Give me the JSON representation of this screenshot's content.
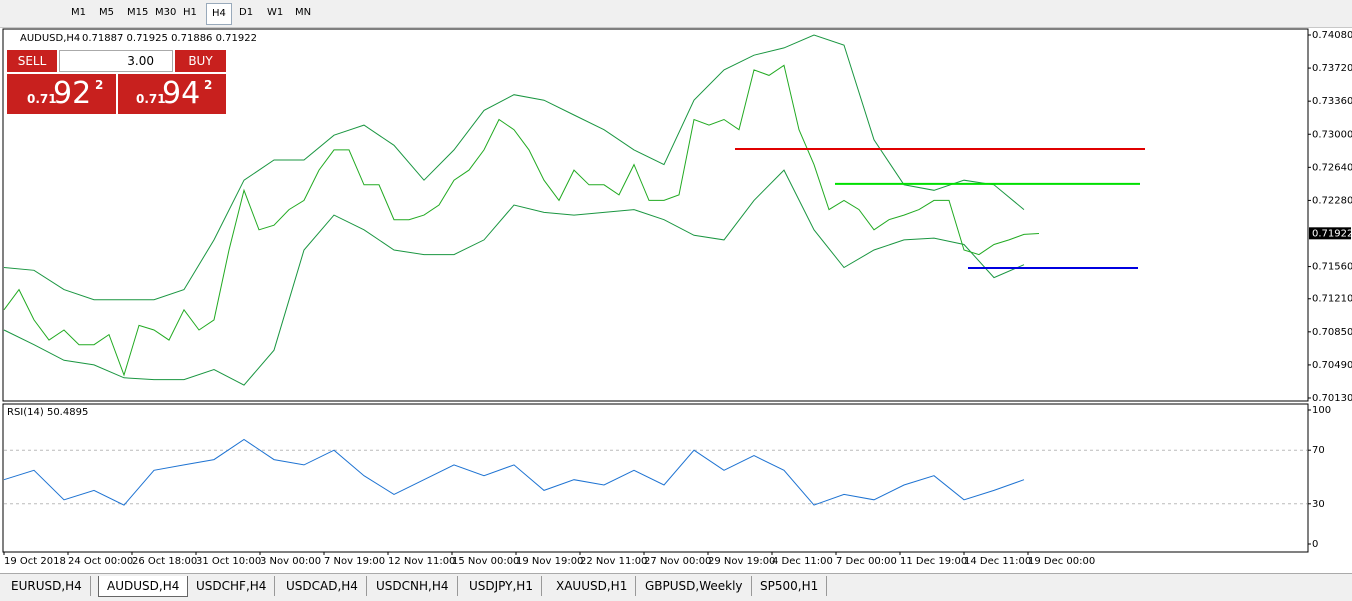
{
  "toolbar": {
    "timeframes": [
      "M1",
      "M5",
      "M15",
      "M30",
      "H1",
      "H4",
      "D1",
      "W1",
      "MN"
    ],
    "active": "H4"
  },
  "header": {
    "symbol": "AUDUSD,H4",
    "quote": "0.71887 0.71925 0.71886 0.71922"
  },
  "trade_panel": {
    "sell": "SELL",
    "buy": "BUY",
    "lots": "3.00",
    "bid_prefix": "0.71",
    "bid_big": "92",
    "bid_small": "2",
    "ask_prefix": "0.71",
    "ask_big": "94",
    "ask_small": "2"
  },
  "chart": {
    "type": "line",
    "ylim": [
      0.7013,
      0.7408
    ],
    "yticks": [
      {
        "value": 0.7408,
        "label": "0.74080"
      },
      {
        "value": 0.7372,
        "label": "0.73720"
      },
      {
        "value": 0.7336,
        "label": "0.73360"
      },
      {
        "value": 0.73,
        "label": "0.73000"
      },
      {
        "value": 0.7264,
        "label": "0.72640"
      },
      {
        "value": 0.7228,
        "label": "0.72280"
      },
      {
        "value": 0.7156,
        "label": "0.71560"
      },
      {
        "value": 0.7121,
        "label": "0.71210"
      },
      {
        "value": 0.7085,
        "label": "0.70850"
      },
      {
        "value": 0.7049,
        "label": "0.70490"
      },
      {
        "value": 0.7013,
        "label": "0.70130"
      }
    ],
    "current_price": 0.71922,
    "dates": [
      "19 Oct 2018",
      "24 Oct 00:00",
      "26 Oct 18:00",
      "31 Oct 10:00",
      "3 Nov 00:00",
      "7 Nov 19:00",
      "12 Nov 11:00",
      "15 Nov 00:00",
      "19 Nov 19:00",
      "22 Nov 11:00",
      "27 Nov 00:00",
      "29 Nov 19:00",
      "4 Dec 11:00",
      "7 Dec 00:00",
      "11 Dec 19:00",
      "14 Dec 11:00",
      "19 Dec 00:00"
    ],
    "close": [
      0.7109,
      0.7131,
      0.7098,
      0.7076,
      0.7087,
      0.7071,
      0.7071,
      0.7082,
      0.7038,
      0.7092,
      0.7087,
      0.7076,
      0.7109,
      0.7087,
      0.7098,
      0.7174,
      0.7239,
      0.7196,
      0.7201,
      0.7218,
      0.7228,
      0.7261,
      0.7283,
      0.7283,
      0.7245,
      0.7245,
      0.7207,
      0.7207,
      0.7212,
      0.7223,
      0.725,
      0.7261,
      0.7283,
      0.7316,
      0.7305,
      0.7283,
      0.725,
      0.7228,
      0.7261,
      0.7245,
      0.7245,
      0.7234,
      0.7267,
      0.7228,
      0.7228,
      0.7234,
      0.7316,
      0.731,
      0.7316,
      0.7305,
      0.737,
      0.7364,
      0.7375,
      0.7305,
      0.7267,
      0.7218,
      0.7228,
      0.7218,
      0.7196,
      0.7207,
      0.7212,
      0.7218,
      0.7228,
      0.7228,
      0.7174,
      0.7169,
      0.718,
      0.7185,
      0.7191,
      0.7192
    ],
    "band_upper": [
      0.7155,
      0.7152,
      0.7131,
      0.712,
      0.712,
      0.712,
      0.7131,
      0.7185,
      0.725,
      0.7272,
      0.7272,
      0.7299,
      0.731,
      0.7288,
      0.725,
      0.7283,
      0.7326,
      0.7343,
      0.7337,
      0.7321,
      0.7305,
      0.7283,
      0.7267,
      0.7337,
      0.737,
      0.7386,
      0.7394,
      0.7408,
      0.7397,
      0.7294,
      0.7245,
      0.7239,
      0.725,
      0.7245,
      0.7218
    ],
    "band_lower": [
      0.7087,
      0.7071,
      0.7054,
      0.7049,
      0.7035,
      0.7033,
      0.7033,
      0.7044,
      0.7027,
      0.7065,
      0.7174,
      0.7212,
      0.7196,
      0.7174,
      0.7169,
      0.7169,
      0.7185,
      0.7223,
      0.7215,
      0.7212,
      0.7215,
      0.7218,
      0.7207,
      0.719,
      0.7185,
      0.7228,
      0.7261,
      0.7196,
      0.7155,
      0.7174,
      0.7185,
      0.7187,
      0.718,
      0.7144,
      0.7158
    ],
    "levels": [
      {
        "value": 0.7284,
        "color": "#e00000"
      },
      {
        "value": 0.7246,
        "color": "#00e000"
      },
      {
        "value": 0.71545,
        "color": "#0000e0"
      }
    ],
    "rsi": {
      "label": "RSI(14) 50.4895",
      "ylim": [
        0,
        100
      ],
      "yticks": [
        100,
        70,
        30,
        0
      ],
      "values": [
        48,
        55,
        33,
        40,
        29,
        55,
        59,
        63,
        78,
        63,
        59,
        70,
        51,
        37,
        48,
        59,
        51,
        59,
        40,
        48,
        44,
        55,
        44,
        70,
        55,
        66,
        55,
        29,
        37,
        33,
        44,
        51,
        33,
        40,
        48
      ]
    }
  },
  "tabs": {
    "items": [
      "EURUSD,H4",
      "AUDUSD,H4",
      "USDCHF,H4",
      "USDCAD,H4",
      "USDCNH,H4",
      "USDJPY,H1",
      "XAUUSD,H1",
      "GBPUSD,Weekly",
      "SP500,H1"
    ],
    "active": "AUDUSD,H4"
  }
}
